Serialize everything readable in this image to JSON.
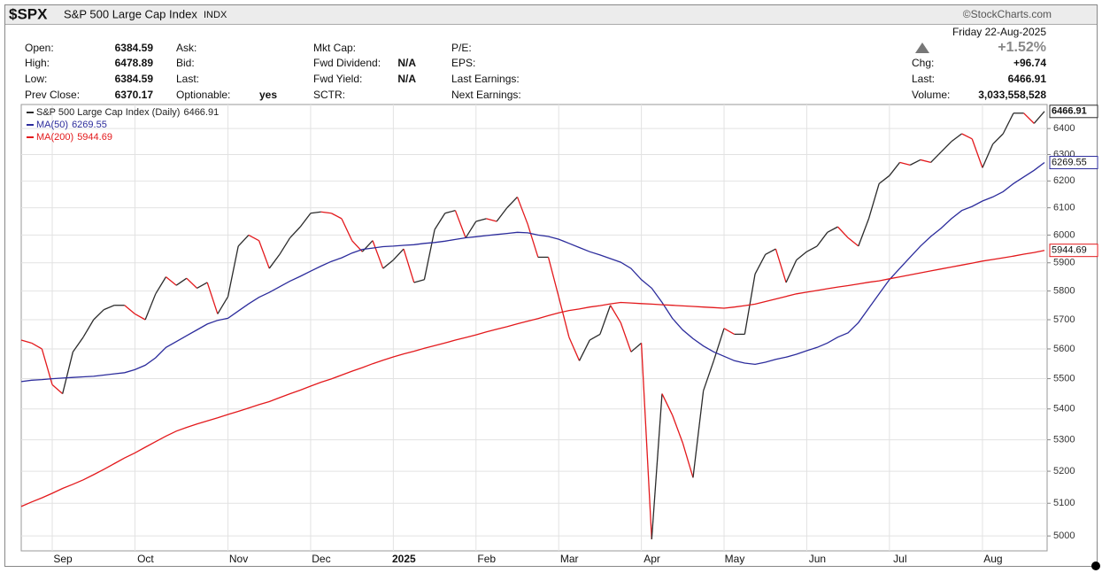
{
  "header": {
    "symbol": "$SPX",
    "name": "S&P 500 Large Cap Index",
    "exchange": "INDX",
    "credit": "©StockCharts.com"
  },
  "quote": {
    "columns": [
      [
        {
          "label": "Open:",
          "value": "6384.59"
        },
        {
          "label": "High:",
          "value": "6478.89"
        },
        {
          "label": "Low:",
          "value": "6384.59"
        },
        {
          "label": "Prev Close:",
          "value": "6370.17"
        }
      ],
      [
        {
          "label": "Ask:"
        },
        {
          "label": "Bid:"
        },
        {
          "label": "Last:"
        },
        {
          "label": "Optionable:",
          "value": "yes"
        }
      ],
      [
        {
          "label": "Mkt Cap:"
        },
        {
          "label": "Fwd Dividend:",
          "value": "N/A"
        },
        {
          "label": "Fwd Yield:",
          "value": "N/A"
        },
        {
          "label": "SCTR:"
        }
      ],
      [
        {
          "label": "P/E:"
        },
        {
          "label": "EPS:"
        },
        {
          "label": "Last Earnings:"
        },
        {
          "label": "Next Earnings:"
        }
      ]
    ],
    "date": "Friday  22-Aug-2025",
    "change_pct": "+1.52%",
    "right": [
      {
        "label": "Chg:",
        "value": "+96.74"
      },
      {
        "label": "Last:",
        "value": "6466.91"
      },
      {
        "label": "Volume:",
        "value": "3,033,558,528"
      }
    ]
  },
  "chart_data": {
    "type": "line",
    "log_scale": true,
    "grid": true,
    "categories": [
      null,
      null,
      null,
      "Sep",
      null,
      null,
      null,
      null,
      null,
      null,
      null,
      "Oct",
      null,
      null,
      null,
      null,
      null,
      null,
      null,
      null,
      "Nov",
      null,
      null,
      null,
      null,
      null,
      null,
      null,
      "Dec",
      null,
      null,
      null,
      null,
      null,
      null,
      null,
      "2025",
      null,
      null,
      null,
      null,
      null,
      null,
      null,
      "Feb",
      null,
      null,
      null,
      null,
      null,
      null,
      null,
      "Mar",
      null,
      null,
      null,
      null,
      null,
      null,
      null,
      "Apr",
      null,
      null,
      null,
      null,
      null,
      null,
      null,
      "May",
      null,
      null,
      null,
      null,
      null,
      null,
      null,
      "Jun",
      null,
      null,
      null,
      null,
      null,
      null,
      null,
      "Jul",
      null,
      null,
      null,
      null,
      null,
      null,
      null,
      null,
      "Aug",
      null,
      null,
      null,
      null,
      null,
      null
    ],
    "ylim": [
      4955,
      6494
    ],
    "yticks": [
      5000,
      5100,
      5200,
      5300,
      5400,
      5500,
      5600,
      5700,
      5800,
      5900,
      6000,
      6100,
      6200,
      6300,
      6400
    ],
    "series": [
      {
        "name": "S&P 500 Large Cap Index (Daily)",
        "color": "#2b2b2b",
        "down_color": "#e3191c",
        "values": [
          5630,
          5620,
          5600,
          5480,
          5450,
          5590,
          5640,
          5700,
          5735,
          5750,
          5750,
          5720,
          5700,
          5790,
          5850,
          5820,
          5845,
          5810,
          5830,
          5720,
          5780,
          5960,
          6000,
          5980,
          5880,
          5930,
          5990,
          6030,
          6080,
          6085,
          6080,
          6060,
          5980,
          5940,
          5980,
          5880,
          5910,
          5950,
          5830,
          5840,
          6020,
          6080,
          6090,
          5990,
          6050,
          6060,
          6050,
          6100,
          6140,
          6040,
          5920,
          5920,
          5780,
          5640,
          5560,
          5630,
          5650,
          5750,
          5690,
          5590,
          5620,
          4990,
          5450,
          5380,
          5290,
          5180,
          5460,
          5560,
          5670,
          5650,
          5650,
          5860,
          5930,
          5950,
          5830,
          5910,
          5940,
          5960,
          6010,
          6030,
          5990,
          5960,
          6060,
          6190,
          6220,
          6270,
          6260,
          6280,
          6270,
          6310,
          6350,
          6380,
          6360,
          6250,
          6340,
          6380,
          6460,
          6460,
          6420,
          6466.91
        ]
      },
      {
        "name": "MA(50)",
        "color": "#2c2c9c",
        "values": [
          5490,
          5495,
          5497,
          5500,
          5502,
          5504,
          5506,
          5508,
          5512,
          5516,
          5520,
          5530,
          5545,
          5570,
          5605,
          5625,
          5645,
          5665,
          5685,
          5698,
          5705,
          5730,
          5755,
          5778,
          5795,
          5815,
          5835,
          5852,
          5870,
          5888,
          5905,
          5918,
          5935,
          5948,
          5953,
          5958,
          5960,
          5963,
          5965,
          5970,
          5973,
          5978,
          5984,
          5990,
          5994,
          5998,
          6002,
          6006,
          6010,
          6008,
          6000,
          5995,
          5985,
          5970,
          5955,
          5940,
          5928,
          5915,
          5902,
          5880,
          5840,
          5810,
          5760,
          5705,
          5665,
          5635,
          5610,
          5590,
          5575,
          5560,
          5552,
          5548,
          5555,
          5565,
          5572,
          5582,
          5594,
          5605,
          5620,
          5640,
          5655,
          5690,
          5740,
          5790,
          5840,
          5880,
          5920,
          5960,
          5995,
          6025,
          6060,
          6090,
          6105,
          6125,
          6140,
          6160,
          6190,
          6215,
          6240,
          6269.55
        ]
      },
      {
        "name": "MA(200)",
        "color": "#e3191c",
        "values": [
          5090,
          5104,
          5117,
          5131,
          5146,
          5159,
          5173,
          5189,
          5206,
          5224,
          5242,
          5258,
          5276,
          5294,
          5312,
          5328,
          5340,
          5351,
          5361,
          5371,
          5382,
          5392,
          5403,
          5414,
          5424,
          5437,
          5450,
          5462,
          5475,
          5488,
          5499,
          5512,
          5525,
          5537,
          5550,
          5562,
          5573,
          5583,
          5592,
          5602,
          5611,
          5620,
          5630,
          5639,
          5648,
          5658,
          5667,
          5676,
          5686,
          5695,
          5704,
          5714,
          5724,
          5732,
          5737,
          5744,
          5749,
          5755,
          5760,
          5758,
          5756,
          5754,
          5752,
          5750,
          5748,
          5746,
          5744,
          5742,
          5740,
          5744,
          5749,
          5754,
          5763,
          5772,
          5781,
          5790,
          5796,
          5802,
          5808,
          5814,
          5819,
          5825,
          5831,
          5836,
          5843,
          5850,
          5857,
          5864,
          5871,
          5878,
          5885,
          5892,
          5899,
          5906,
          5912,
          5918,
          5924,
          5931,
          5937,
          5944.69
        ]
      }
    ]
  }
}
